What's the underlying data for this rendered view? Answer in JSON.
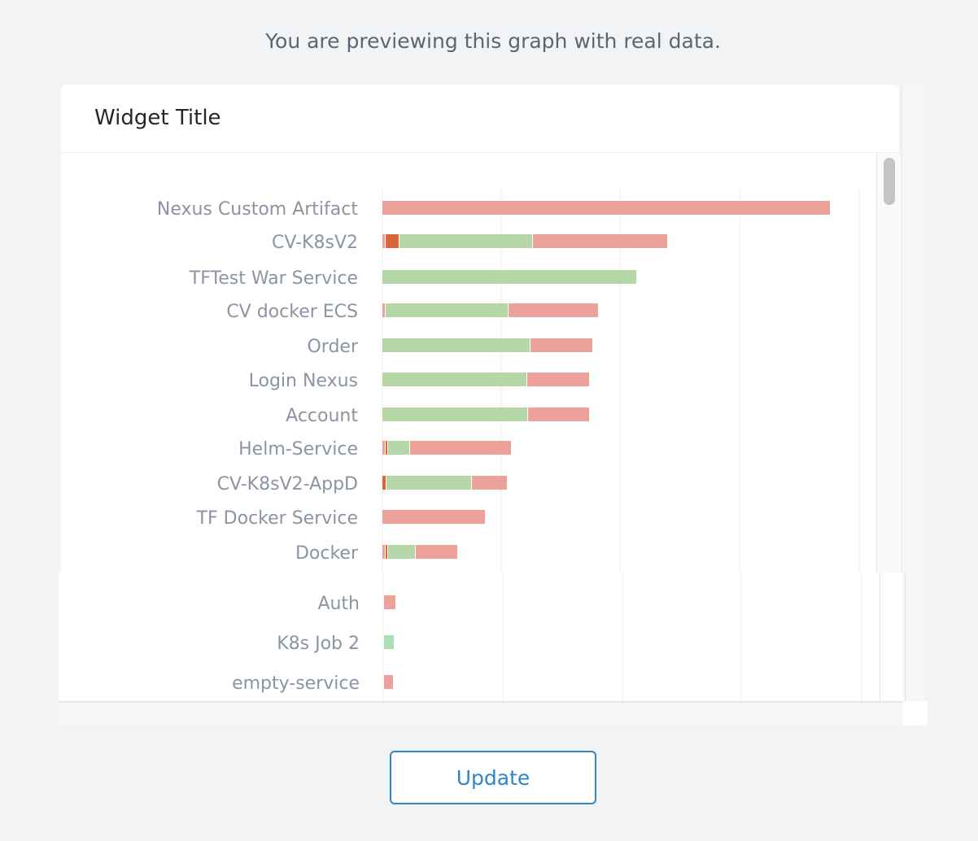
{
  "notice": "You are previewing this graph with real data.",
  "widget": {
    "title": "Widget Title"
  },
  "button": {
    "update_label": "Update"
  },
  "colors": {
    "success": "#b5d6a6",
    "failed": "#eca29a",
    "aborted": "#d7673a",
    "mint": "#abe0b3"
  },
  "chart_data": {
    "type": "bar",
    "orientation": "horizontal",
    "stacked": true,
    "grid": true,
    "categories": [
      "Nexus Custom Artifact",
      "CV-K8sV2",
      "TFTest War Service",
      "CV docker ECS",
      "Order",
      "Login Nexus",
      "Account",
      "Helm-Service",
      "CV-K8sV2-AppD",
      "TF Docker Service",
      "Docker",
      "Auth",
      "K8s Job 2",
      "empty-service"
    ],
    "series": [
      {
        "color": "#eca29a",
        "values": [
          0,
          3,
          0,
          3,
          0,
          0,
          0,
          3,
          0,
          0,
          3,
          0,
          0,
          0
        ]
      },
      {
        "color": "#d7673a",
        "values": [
          0,
          16,
          0,
          0,
          0,
          0,
          0,
          2,
          4,
          0,
          2,
          0,
          0,
          0
        ]
      },
      {
        "color": "#b5d6a6",
        "values": [
          0,
          163,
          312,
          150,
          181,
          177,
          178,
          26,
          104,
          0,
          33,
          0,
          0,
          0
        ]
      },
      {
        "color": "#eca29a",
        "values": [
          550,
          165,
          0,
          110,
          76,
          76,
          75,
          124,
          43,
          126,
          51,
          14,
          0,
          11
        ]
      },
      {
        "color": "#abe0b3",
        "values": [
          0,
          0,
          0,
          0,
          0,
          0,
          0,
          0,
          0,
          0,
          0,
          0,
          12,
          0
        ]
      }
    ]
  }
}
